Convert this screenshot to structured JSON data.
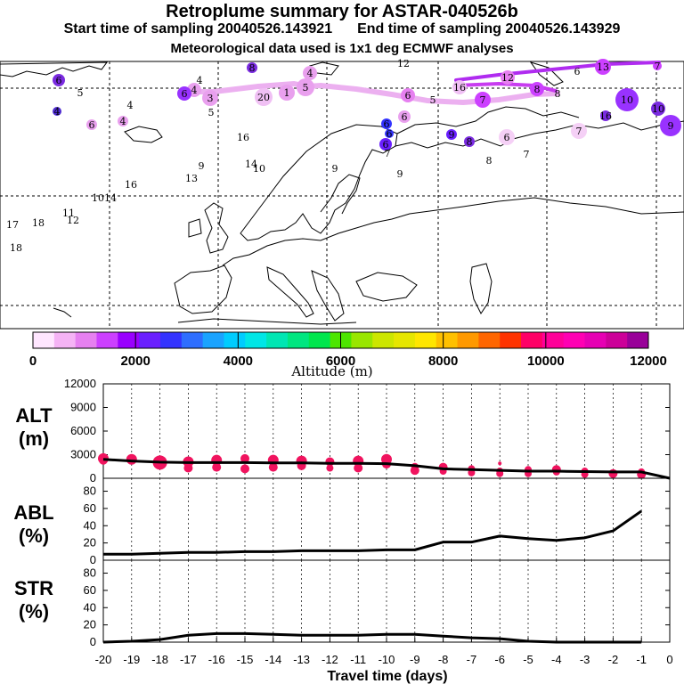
{
  "header": {
    "title": "Retroplume summary for ASTAR-040526b",
    "start_label": "Start time of sampling 20040526.143921",
    "end_label": "End time of sampling 20040526.143929",
    "met_label": "Meteorological data used is 1x1 deg ECMWF analyses"
  },
  "colorbar": {
    "title": "Altitude (m)",
    "tick_labels": [
      "0",
      "2000",
      "4000",
      "6000",
      "8000",
      "10000",
      "12000"
    ],
    "colors": [
      "#ffe6ff",
      "#f5b3f5",
      "#e680f0",
      "#cc40ff",
      "#9900ff",
      "#6a1fff",
      "#3333ff",
      "#2e6eff",
      "#1aa3ff",
      "#00ccff",
      "#00e6e6",
      "#00e6b3",
      "#00e680",
      "#00e64d",
      "#4de600",
      "#99e600",
      "#cce600",
      "#e6e600",
      "#ffe600",
      "#ffc000",
      "#ff9900",
      "#ff6600",
      "#ff3300",
      "#ff0066",
      "#ff0099",
      "#ff00b3",
      "#e600b3",
      "#cc0099",
      "#990099"
    ]
  },
  "map": {
    "labels": [
      {
        "t": "4",
        "x": 348,
        "y": 82,
        "c": "#e9a0ee",
        "r": 8
      },
      {
        "t": "5",
        "x": 343,
        "y": 98,
        "c": "#e9a0ee",
        "r": 10
      },
      {
        "t": "1",
        "x": 322,
        "y": 104,
        "c": "#e9a0ee",
        "r": 9
      },
      {
        "t": "20",
        "x": 296,
        "y": 109,
        "c": "#f0c0f4",
        "r": 10
      },
      {
        "t": "3",
        "x": 236,
        "y": 110,
        "c": "#e9a0ee",
        "r": 9
      },
      {
        "t": "4",
        "x": 218,
        "y": 101,
        "c": "#e9a0ee",
        "r": 8
      },
      {
        "t": "4",
        "x": 224,
        "y": 90,
        "c": "#f5d0f6",
        "r": 0
      },
      {
        "t": "6",
        "x": 207,
        "y": 105,
        "c": "#9932ff",
        "r": 8
      },
      {
        "t": "6",
        "x": 66,
        "y": 90,
        "c": "#7a2be0",
        "r": 7
      },
      {
        "t": "5",
        "x": 90,
        "y": 104,
        "c": "#f5d0f6",
        "r": 0
      },
      {
        "t": "4",
        "x": 146,
        "y": 118,
        "c": "#f5d0f6",
        "r": 0
      },
      {
        "t": "4",
        "x": 138,
        "y": 136,
        "c": "#e9a0ee",
        "r": 6
      },
      {
        "t": "6",
        "x": 103,
        "y": 140,
        "c": "#e9a0ee",
        "r": 6
      },
      {
        "t": "4",
        "x": 64,
        "y": 125,
        "c": "#4e2cd0",
        "r": 5
      },
      {
        "t": "5",
        "x": 237,
        "y": 126,
        "c": "#f5d0f6",
        "r": 0
      },
      {
        "t": "8",
        "x": 283,
        "y": 76,
        "c": "#7a2be0",
        "r": 6
      },
      {
        "t": "16",
        "x": 273,
        "y": 154,
        "c": "#e9a0ee",
        "r": 0
      },
      {
        "t": "9",
        "x": 226,
        "y": 186,
        "c": "#f5d0f6",
        "r": 0
      },
      {
        "t": "13",
        "x": 215,
        "y": 200,
        "c": "#e9a0ee",
        "r": 0
      },
      {
        "t": "14",
        "x": 282,
        "y": 184,
        "c": "#e9a0ee",
        "r": 0
      },
      {
        "t": "10",
        "x": 291,
        "y": 189,
        "c": "#f5d0f6",
        "r": 0
      },
      {
        "t": "16",
        "x": 147,
        "y": 207,
        "c": "#f5d0f6",
        "r": 0
      },
      {
        "t": "1014",
        "x": 117,
        "y": 222,
        "c": "#f5d0f6",
        "r": 0
      },
      {
        "t": "11",
        "x": 77,
        "y": 239,
        "c": "#f5d0f6",
        "r": 0
      },
      {
        "t": "12",
        "x": 82,
        "y": 247,
        "c": "#e9a0ee",
        "r": 0
      },
      {
        "t": "17",
        "x": 14,
        "y": 252,
        "c": "#e9a0ee",
        "r": 0
      },
      {
        "t": "18",
        "x": 43,
        "y": 250,
        "c": "#f5d0f6",
        "r": 0
      },
      {
        "t": "18",
        "x": 18,
        "y": 278,
        "c": "#e9a0ee",
        "r": 0
      },
      {
        "t": "12",
        "x": 453,
        "y": 71,
        "c": "#f5d0f6",
        "r": 0
      },
      {
        "t": "16",
        "x": 516,
        "y": 98,
        "c": "#f0c0f4",
        "r": 8
      },
      {
        "t": "12",
        "x": 570,
        "y": 87,
        "c": "#e680f0",
        "r": 8
      },
      {
        "t": "13",
        "x": 677,
        "y": 75,
        "c": "#cc40ff",
        "r": 9
      },
      {
        "t": "7",
        "x": 738,
        "y": 74,
        "c": "#cc40ff",
        "r": 5
      },
      {
        "t": "6",
        "x": 458,
        "y": 107,
        "c": "#e680f0",
        "r": 8
      },
      {
        "t": "5",
        "x": 486,
        "y": 112,
        "c": "#e680f0",
        "r": 0
      },
      {
        "t": "7",
        "x": 542,
        "y": 112,
        "c": "#cc40ff",
        "r": 9
      },
      {
        "t": "8",
        "x": 603,
        "y": 100,
        "c": "#cc40ff",
        "r": 8
      },
      {
        "t": "8",
        "x": 626,
        "y": 105,
        "c": "#e680f0",
        "r": 0
      },
      {
        "t": "6",
        "x": 648,
        "y": 80,
        "c": "#e9a0ee",
        "r": 0
      },
      {
        "t": "10",
        "x": 704,
        "y": 112,
        "c": "#9932ff",
        "r": 13
      },
      {
        "t": "10",
        "x": 739,
        "y": 122,
        "c": "#7a2be0",
        "r": 8
      },
      {
        "t": "9",
        "x": 753,
        "y": 141,
        "c": "#9932ff",
        "r": 12
      },
      {
        "t": "16",
        "x": 680,
        "y": 130,
        "c": "#7a2be0",
        "r": 6
      },
      {
        "t": "7",
        "x": 650,
        "y": 147,
        "c": "#f5d0f6",
        "r": 9
      },
      {
        "t": "6",
        "x": 454,
        "y": 131,
        "c": "#e9a0ee",
        "r": 7
      },
      {
        "t": "6",
        "x": 569,
        "y": 154,
        "c": "#f5d0f6",
        "r": 9
      },
      {
        "t": "7",
        "x": 591,
        "y": 173,
        "c": "#e9a0ee",
        "r": 0
      },
      {
        "t": "8",
        "x": 549,
        "y": 180,
        "c": "#f5d0f6",
        "r": 0
      },
      {
        "t": "9",
        "x": 507,
        "y": 151,
        "c": "#6a1fff",
        "r": 6
      },
      {
        "t": "8",
        "x": 527,
        "y": 159,
        "c": "#7a2be0",
        "r": 6
      },
      {
        "t": "6",
        "x": 434,
        "y": 139,
        "c": "#3333ff",
        "r": 6
      },
      {
        "t": "6",
        "x": 437,
        "y": 150,
        "c": "#3333ff",
        "r": 5
      },
      {
        "t": "6",
        "x": 433,
        "y": 162,
        "c": "#6a1fff",
        "r": 7
      },
      {
        "t": "7",
        "x": 435,
        "y": 172,
        "c": "#cc40ff",
        "r": 0
      },
      {
        "t": "9",
        "x": 449,
        "y": 195,
        "c": "#f5d0f6",
        "r": 0
      },
      {
        "t": "9",
        "x": 376,
        "y": 189,
        "c": "#cc40ff",
        "r": 0
      }
    ]
  },
  "panels": {
    "alt": {
      "label_top": "ALT",
      "label_bottom": "(m)",
      "ticks": [
        "0",
        "3000",
        "6000",
        "9000",
        "12000"
      ]
    },
    "abl": {
      "label_top": "ABL",
      "label_bottom": "(%)",
      "ticks": [
        "0",
        "20",
        "40",
        "60",
        "80"
      ]
    },
    "str": {
      "label_top": "STR",
      "label_bottom": "(%)",
      "ticks": [
        "0",
        "20",
        "40",
        "60",
        "80"
      ]
    }
  },
  "xaxis": {
    "title": "Travel time (days)",
    "tick_labels": [
      "-20",
      "-19",
      "-18",
      "-17",
      "-16",
      "-15",
      "-14",
      "-13",
      "-12",
      "-11",
      "-10",
      "-9",
      "-8",
      "-7",
      "-6",
      "-5",
      "-4",
      "-3",
      "-2",
      "-1",
      "0"
    ]
  },
  "chart_data": [
    {
      "type": "line",
      "title": "ALT",
      "ylabel": "ALT (m)",
      "xlabel": "Travel time (days)",
      "xlim": [
        -20,
        0
      ],
      "ylim": [
        0,
        12000
      ],
      "series": [
        {
          "name": "mean altitude",
          "x": [
            -20,
            -19,
            -18,
            -17,
            -16,
            -15,
            -14,
            -13,
            -12,
            -11,
            -10,
            -9,
            -8,
            -7,
            -6,
            -5,
            -4,
            -3,
            -2,
            -1,
            0
          ],
          "values": [
            2400,
            2200,
            2050,
            2000,
            2000,
            2000,
            1950,
            1950,
            1900,
            1900,
            1850,
            1600,
            1200,
            1100,
            1000,
            900,
            900,
            850,
            800,
            800,
            0
          ]
        }
      ],
      "scatter": {
        "x": [
          -20,
          -20,
          -19,
          -18,
          -18,
          -17,
          -17,
          -16,
          -16,
          -15,
          -15,
          -14,
          -14,
          -13,
          -13,
          -12,
          -12,
          -11,
          -11,
          -10,
          -10,
          -9,
          -9,
          -8,
          -8,
          -7,
          -7,
          -6,
          -6,
          -6,
          -5,
          -5,
          -4,
          -4,
          -3,
          -3,
          -2,
          -1,
          -1
        ],
        "y": [
          2500,
          2300,
          2400,
          2000,
          2200,
          2100,
          1300,
          2300,
          1400,
          2500,
          1200,
          2300,
          1400,
          2200,
          1600,
          2100,
          1300,
          2200,
          1300,
          2400,
          1800,
          1000,
          1500,
          900,
          1400,
          700,
          1200,
          600,
          900,
          1900,
          600,
          1100,
          800,
          1100,
          500,
          900,
          600,
          500,
          800
        ],
        "size": [
          6,
          5,
          6,
          8,
          6,
          6,
          5,
          6,
          5,
          5,
          5,
          6,
          5,
          6,
          5,
          5,
          4,
          6,
          5,
          6,
          5,
          5,
          4,
          4,
          5,
          4,
          4,
          4,
          4,
          2,
          4,
          4,
          4,
          5,
          4,
          4,
          5,
          5,
          4
        ]
      }
    },
    {
      "type": "line",
      "title": "ABL",
      "ylabel": "ABL (%)",
      "xlim": [
        -20,
        0
      ],
      "ylim": [
        0,
        95
      ],
      "series": [
        {
          "name": "ABL fraction",
          "x": [
            -20,
            -19,
            -18,
            -17,
            -16,
            -15,
            -14,
            -13,
            -12,
            -11,
            -10,
            -9,
            -8,
            -7,
            -6,
            -5,
            -4,
            -3,
            -2,
            -1
          ],
          "values": [
            7,
            7,
            8,
            9,
            9,
            10,
            10,
            11,
            11,
            11,
            12,
            12,
            21,
            21,
            28,
            25,
            23,
            26,
            34,
            57
          ]
        }
      ]
    },
    {
      "type": "line",
      "title": "STR",
      "ylabel": "STR (%)",
      "xlim": [
        -20,
        0
      ],
      "ylim": [
        0,
        95
      ],
      "series": [
        {
          "name": "stratospheric fraction",
          "x": [
            -20,
            -19,
            -18,
            -17,
            -16,
            -15,
            -14,
            -13,
            -12,
            -11,
            -10,
            -9,
            -8,
            -7,
            -6,
            -5,
            -4,
            -3,
            -2,
            -1
          ],
          "values": [
            0,
            1,
            3,
            8,
            10,
            10,
            9,
            8,
            8,
            8,
            9,
            9,
            7,
            5,
            4,
            1,
            0,
            0,
            0,
            0
          ]
        }
      ]
    }
  ]
}
